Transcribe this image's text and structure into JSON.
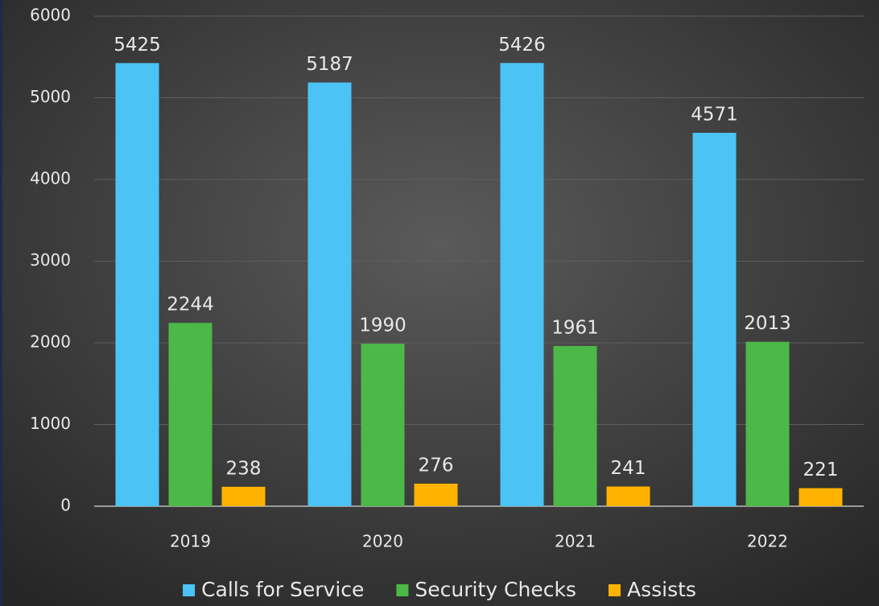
{
  "chart_data": {
    "type": "bar",
    "categories": [
      "2019",
      "2020",
      "2021",
      "2022"
    ],
    "series": [
      {
        "name": "Calls for Service",
        "color": "#4cc3f5",
        "values": [
          5425,
          5187,
          5426,
          4571
        ]
      },
      {
        "name": "Security Checks",
        "color": "#4cb848",
        "values": [
          2244,
          1990,
          1961,
          2013
        ]
      },
      {
        "name": "Assists",
        "color": "#ffb300",
        "values": [
          238,
          276,
          241,
          221
        ]
      }
    ],
    "ylim": [
      0,
      6000
    ],
    "yticks": [
      0,
      1000,
      2000,
      3000,
      4000,
      5000,
      6000
    ],
    "grid": true,
    "legend": "bottom"
  }
}
